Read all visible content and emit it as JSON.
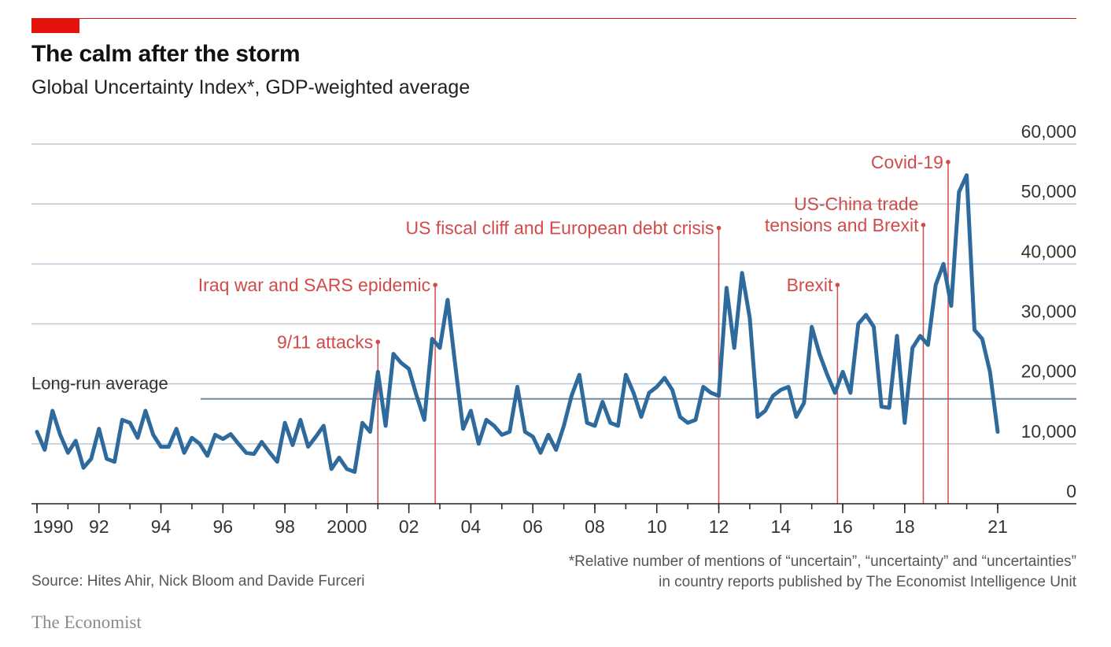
{
  "colors": {
    "accent": "#e3120b",
    "line": "#2e6a9c",
    "grid": "#b8c8d6",
    "annotation": "#d14b4b",
    "text": "#333333"
  },
  "header": {
    "title": "The calm after the storm",
    "subtitle": "Global Uncertainty Index*, GDP-weighted average"
  },
  "footer": {
    "source": "Source: Hites Ahir, Nick Bloom and Davide Furceri",
    "footnote_line1": "*Relative number of mentions of “uncertain”, “uncertainty” and “uncertainties”",
    "footnote_line2": "in country reports published by The Economist Intelligence Unit",
    "brand": "The Economist"
  },
  "chart_data": {
    "type": "line",
    "title": "The calm after the storm",
    "subtitle": "Global Uncertainty Index*, GDP-weighted average",
    "ylim": [
      0,
      60000
    ],
    "xlim": [
      1990,
      2021
    ],
    "yticks": [
      {
        "value": 60000,
        "label": "60,000"
      },
      {
        "value": 50000,
        "label": "50,000"
      },
      {
        "value": 40000,
        "label": "40,000"
      },
      {
        "value": 30000,
        "label": "30,000"
      },
      {
        "value": 20000,
        "label": "20,000"
      },
      {
        "value": 10000,
        "label": "10,000"
      },
      {
        "value": 0,
        "label": "0"
      }
    ],
    "xticks": [
      {
        "value": 1990,
        "label": "1990"
      },
      {
        "value": 1992,
        "label": "92"
      },
      {
        "value": 1994,
        "label": "94"
      },
      {
        "value": 1996,
        "label": "96"
      },
      {
        "value": 1998,
        "label": "98"
      },
      {
        "value": 2000,
        "label": "2000"
      },
      {
        "value": 2002,
        "label": "02"
      },
      {
        "value": 2004,
        "label": "04"
      },
      {
        "value": 2006,
        "label": "06"
      },
      {
        "value": 2008,
        "label": "08"
      },
      {
        "value": 2010,
        "label": "10"
      },
      {
        "value": 2012,
        "label": "12"
      },
      {
        "value": 2014,
        "label": "14"
      },
      {
        "value": 2016,
        "label": "16"
      },
      {
        "value": 2018,
        "label": "18"
      },
      {
        "value": 2021,
        "label": "21"
      }
    ],
    "grid": true,
    "long_run_average": {
      "value": 17500,
      "label": "Long-run average"
    },
    "series": [
      {
        "name": "",
        "x": [
          1990.0,
          1990.25,
          1990.5,
          1990.75,
          1991.0,
          1991.25,
          1991.5,
          1991.75,
          1992.0,
          1992.25,
          1992.5,
          1992.75,
          1993.0,
          1993.25,
          1993.5,
          1993.75,
          1994.0,
          1994.25,
          1994.5,
          1994.75,
          1995.0,
          1995.25,
          1995.5,
          1995.75,
          1996.0,
          1996.25,
          1996.5,
          1996.75,
          1997.0,
          1997.25,
          1997.5,
          1997.75,
          1998.0,
          1998.25,
          1998.5,
          1998.75,
          1999.0,
          1999.25,
          1999.5,
          1999.75,
          2000.0,
          2000.25,
          2000.5,
          2000.75,
          2001.0,
          2001.25,
          2001.5,
          2001.75,
          2002.0,
          2002.25,
          2002.5,
          2002.75,
          2003.0,
          2003.25,
          2003.5,
          2003.75,
          2004.0,
          2004.25,
          2004.5,
          2004.75,
          2005.0,
          2005.25,
          2005.5,
          2005.75,
          2006.0,
          2006.25,
          2006.5,
          2006.75,
          2007.0,
          2007.25,
          2007.5,
          2007.75,
          2008.0,
          2008.25,
          2008.5,
          2008.75,
          2009.0,
          2009.25,
          2009.5,
          2009.75,
          2010.0,
          2010.25,
          2010.5,
          2010.75,
          2011.0,
          2011.25,
          2011.5,
          2011.75,
          2012.0,
          2012.25,
          2012.5,
          2012.75,
          2013.0,
          2013.25,
          2013.5,
          2013.75,
          2014.0,
          2014.25,
          2014.5,
          2014.75,
          2015.0,
          2015.25,
          2015.5,
          2015.75,
          2016.0,
          2016.25,
          2016.5,
          2016.75,
          2017.0,
          2017.25,
          2017.5,
          2017.75,
          2018.0,
          2018.25,
          2018.5,
          2018.75,
          2019.0,
          2019.25,
          2019.5,
          2019.75,
          2020.0,
          2020.25,
          2020.5,
          2020.75,
          2021.0
        ],
        "y": [
          12000,
          9000,
          15500,
          11500,
          8500,
          10500,
          6000,
          7500,
          12500,
          7500,
          7000,
          14000,
          13500,
          11000,
          15500,
          11500,
          9500,
          9500,
          12500,
          8500,
          11000,
          10000,
          8000,
          11500,
          10800,
          11600,
          10000,
          8500,
          8300,
          10300,
          8600,
          7000,
          13500,
          9800,
          14000,
          9500,
          11200,
          13000,
          5800,
          7700,
          5800,
          5300,
          13500,
          12000,
          22000,
          13000,
          25000,
          23500,
          22500,
          18000,
          14000,
          27500,
          26000,
          34000,
          23000,
          12500,
          15500,
          10000,
          14000,
          13000,
          11500,
          12000,
          19500,
          12000,
          11200,
          8500,
          11500,
          9000,
          13000,
          18000,
          21500,
          13500,
          13000,
          17000,
          13500,
          13000,
          21500,
          18500,
          14500,
          18500,
          19500,
          21000,
          19000,
          14500,
          13500,
          14000,
          19500,
          18500,
          18000,
          36000,
          26000,
          38500,
          31000,
          14500,
          15500,
          18000,
          19000,
          19500,
          14500,
          16800,
          29500,
          25000,
          21500,
          18500,
          22000,
          18500,
          30000,
          31500,
          29500,
          16200,
          16000,
          28000,
          13500,
          26000,
          28000,
          26500,
          36500,
          40000,
          33000,
          52000,
          54800,
          29000,
          27500,
          22000,
          12000
        ]
      }
    ],
    "annotations": [
      {
        "x": 2001.0,
        "y": 27000,
        "label": "9/11 attacks"
      },
      {
        "x": 2002.85,
        "y": 36500,
        "label": "Iraq war and SARS epidemic"
      },
      {
        "x": 2012.0,
        "y": 46000,
        "label": "US fiscal cliff and European debt crisis"
      },
      {
        "x": 2015.83,
        "y": 36500,
        "label": "Brexit"
      },
      {
        "x": 2018.6,
        "y": 46500,
        "label": [
          "US-China trade",
          "tensions and Brexit"
        ]
      },
      {
        "x": 2019.4,
        "y": 57000,
        "label": "Covid-19"
      }
    ]
  }
}
